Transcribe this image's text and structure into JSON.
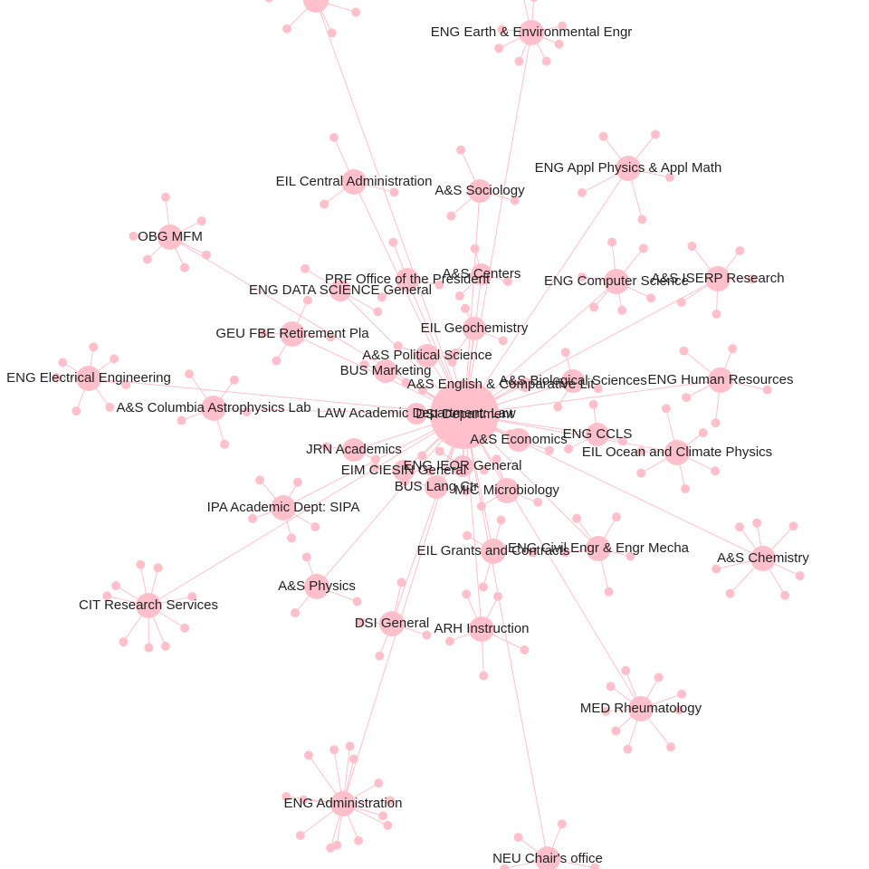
{
  "nodes": [
    {
      "label": "ENG Earth & Environmental Engr"
    },
    {
      "label": "EIL Central Administration"
    },
    {
      "label": "A&S Sociology"
    },
    {
      "label": "ENG Appl Physics & Appl Math"
    },
    {
      "label": "OBG MFM"
    },
    {
      "label": "A&S Centers"
    },
    {
      "label": "PRF Office of the President"
    },
    {
      "label": "ENG DATA SCIENCE General"
    },
    {
      "label": "ENG Computer Science"
    },
    {
      "label": "A&S ISERP Research"
    },
    {
      "label": "GEU FBE Retirement Pla"
    },
    {
      "label": "EIL Geochemistry"
    },
    {
      "label": "A&S Political Science"
    },
    {
      "label": "BUS Marketing"
    },
    {
      "label": "ENG Electrical Engineering"
    },
    {
      "label": "A&S Biological Sciences"
    },
    {
      "label": "ENG Human Resources"
    },
    {
      "label": "A&S English & Comparative Lit"
    },
    {
      "label": "A&S Columbia Astrophysics Lab"
    },
    {
      "label": "LAW Academic Department: Law"
    },
    {
      "label": "DSI Department"
    },
    {
      "label": "A&S Economics"
    },
    {
      "label": "ENG CCLS"
    },
    {
      "label": "EIL Ocean and Climate Physics"
    },
    {
      "label": "JRN Academics"
    },
    {
      "label": "ENG IEOR General"
    },
    {
      "label": "EIM CIESIN General"
    },
    {
      "label": "BUS Lang Ctr"
    },
    {
      "label": "MIC Microbiology"
    },
    {
      "label": "IPA Academic Dept: SIPA"
    },
    {
      "label": "EIL Grants and Contracts"
    },
    {
      "label": "ENG Civil Engr & Engr Mecha"
    },
    {
      "label": "A&S Chemistry"
    },
    {
      "label": "A&S Physics"
    },
    {
      "label": "CIT Research Services"
    },
    {
      "label": "DSI General"
    },
    {
      "label": "ARH Instruction"
    },
    {
      "label": "MED Rheumatology"
    },
    {
      "label": "ENG Administration"
    },
    {
      "label": "NEU Chair's office"
    }
  ]
}
